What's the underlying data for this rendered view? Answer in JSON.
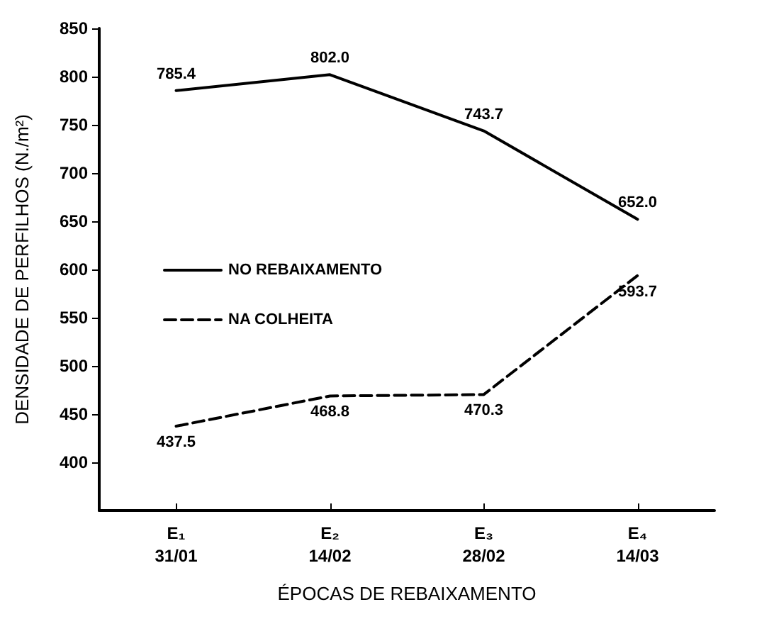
{
  "chart_data": {
    "type": "line",
    "xlabel": "ÉPOCAS DE REBAIXAMENTO",
    "ylabel": "DENSIDADE DE PERFILHOS (N./m²)",
    "categories": [
      "E₁\n31/01",
      "E₂\n14/02",
      "E₃\n28/02",
      "E₄\n14/03"
    ],
    "series": [
      {
        "name": "NO REBAIXAMENTO",
        "color": "#000000",
        "line_style": "solid",
        "values": [
          785.4,
          802.0,
          743.7,
          652.0
        ],
        "value_labels": [
          "785.4",
          "802.0",
          "743.7",
          "652.0"
        ]
      },
      {
        "name": "NA COLHEITA",
        "color": "#000000",
        "line_style": "dashed",
        "values": [
          437.5,
          468.8,
          470.3,
          593.7
        ],
        "value_labels": [
          "437.5",
          "468.8",
          "470.3",
          "593.7"
        ]
      }
    ],
    "ylim": [
      350,
      850
    ],
    "yticks": [
      400,
      450,
      500,
      550,
      600,
      650,
      700,
      750,
      800,
      850
    ],
    "grid": false,
    "legend": "left",
    "marker": "none"
  }
}
